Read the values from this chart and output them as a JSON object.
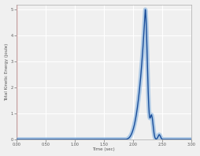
{
  "title": "",
  "xlabel": "Time (sec)",
  "ylabel": "Total Kinetic Energy (joule)",
  "xlim": [
    0.0,
    3.0
  ],
  "ylim": [
    0.0,
    5.2
  ],
  "xticks": [
    0.0,
    0.5,
    1.0,
    1.5,
    2.0,
    2.5,
    3.0
  ],
  "yticks": [
    0.0,
    1.0,
    2.0,
    3.0,
    4.0,
    5.0
  ],
  "line_color": "#1a4e9a",
  "line_color_light": "#7aabdd",
  "bg_color": "#f0f0f0",
  "grid_color": "#ffffff",
  "axis_color": "#aaaaaa",
  "peak_x": 2.21,
  "rise_start": 1.85,
  "secondary_peak_x": 2.32,
  "secondary_peak_y": 0.9,
  "third_peak_x": 2.45,
  "third_peak_y": 0.18
}
